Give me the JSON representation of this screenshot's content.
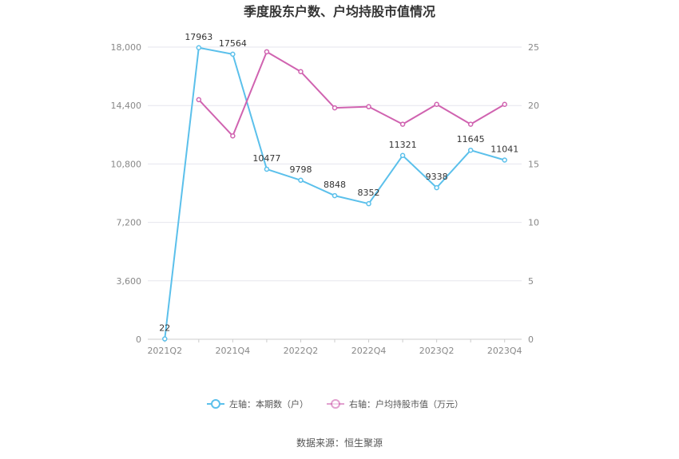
{
  "chart_data": {
    "type": "line",
    "title": "季度股东户数、户均持股市值情况",
    "categories": [
      "2021Q2",
      "2021Q3",
      "2021Q4",
      "2022Q1",
      "2022Q2",
      "2022Q3",
      "2022Q4",
      "2023Q1",
      "2023Q2",
      "2023Q3",
      "2023Q4"
    ],
    "x_tick_labels": [
      "2021Q2",
      "2021Q4",
      "2022Q2",
      "2022Q4",
      "2023Q2",
      "2023Q4"
    ],
    "left_axis": {
      "ylim": [
        0,
        18000
      ],
      "ticks": [
        "0",
        "3,600",
        "7,200",
        "10,800",
        "14,400",
        "18,000"
      ]
    },
    "right_axis": {
      "ylim": [
        0,
        25
      ],
      "ticks": [
        "0",
        "5",
        "10",
        "15",
        "20",
        "25"
      ]
    },
    "series": [
      {
        "name": "左轴：本期数（户）",
        "axis": "left",
        "color": "#5bc0eb",
        "values": [
          22,
          17963,
          17564,
          10477,
          9798,
          8848,
          8352,
          11321,
          9338,
          11645,
          11041
        ],
        "labels": [
          "22",
          "17963",
          "17564",
          "10477",
          "9798",
          "8848",
          "8352",
          "11321",
          "9338",
          "11645",
          "11041"
        ]
      },
      {
        "name": "右轴：户均持股市值（万元）",
        "axis": "right",
        "color": "#d063b0",
        "values": [
          null,
          20.5,
          17.4,
          24.6,
          22.9,
          19.8,
          19.9,
          18.4,
          20.1,
          18.4,
          20.1
        ]
      }
    ],
    "grid": true,
    "legend_position": "bottom"
  },
  "source": "数据来源：恒生聚源"
}
